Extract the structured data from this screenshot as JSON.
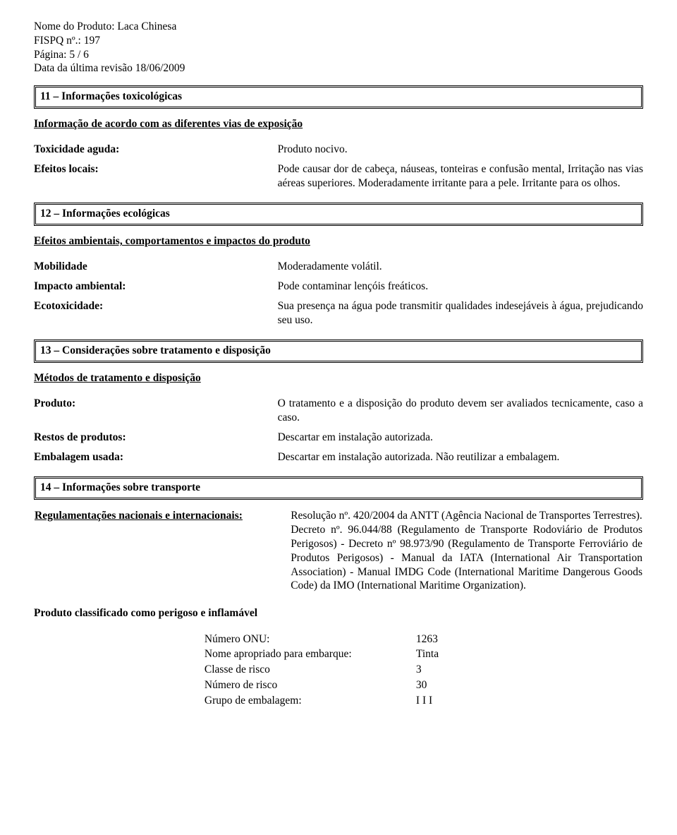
{
  "header": {
    "product_name_label": "Nome do Produto:",
    "product_name_value": "Laca Chinesa",
    "fispq_label": "FISPQ nº.:",
    "fispq_value": "197",
    "page_label": "Página:",
    "page_value": "5 / 6",
    "revision_label": "Data da última revisão",
    "revision_value": "18/06/2009"
  },
  "sec11": {
    "title": "11 – Informações toxicológicas",
    "subheading": "Informação de acordo com  as diferentes vias de exposição",
    "row1_label": "Toxicidade aguda:",
    "row1_value": "Produto nocivo.",
    "row2_label": "Efeitos locais:",
    "row2_value": "Pode causar dor de cabeça, náuseas, tonteiras e confusão mental, Irritação nas vias aéreas superiores. Moderadamente irritante para a pele. Irritante para os olhos."
  },
  "sec12": {
    "title": "12 – Informações ecológicas",
    "subheading": "Efeitos ambientais, comportamentos e impactos do produto",
    "row1_label": "Mobilidade",
    "row1_value": "Moderadamente volátil.",
    "row2_label": "Impacto ambiental:",
    "row2_value": "Pode contaminar lençóis freáticos.",
    "row3_label": "Ecotoxicidade:",
    "row3_value": "Sua presença na água pode transmitir qualidades indesejáveis à água, prejudicando seu uso."
  },
  "sec13": {
    "title": "13 – Considerações sobre tratamento e disposição",
    "subheading": "Métodos de tratamento e disposição",
    "row1_label": "Produto:",
    "row1_value": "O tratamento e a disposição do produto devem ser avaliados tecnicamente, caso a caso.",
    "row2_label": "Restos de produtos:",
    "row2_value": "Descartar em instalação autorizada.",
    "row3_label": "Embalagem usada:",
    "row3_value": "Descartar em instalação autorizada. Não reutilizar a embalagem."
  },
  "sec14": {
    "title": "14 – Informações sobre transporte",
    "reg_label": "Regulamentações nacionais e internacionais:",
    "reg_value": "Resolução nº. 420/2004 da ANTT (Agência Nacional de Transportes Terrestres).\nDecreto nº. 96.044/88 (Regulamento de Transporte Rodoviário de Produtos Perigosos) - Decreto nº 98.973/90 (Regulamento de Transporte Ferroviário de Produtos Perigosos) - Manual da IATA (International Air Transportation Association) - Manual IMDG Code (International Maritime Dangerous Goods Code) da IMO (International Maritime Organization).",
    "class_line": "Produto classificado como perigoso e inflamável",
    "tv": [
      {
        "label": "Número ONU:",
        "value": "1263"
      },
      {
        "label": "Nome apropriado para embarque:",
        "value": "Tinta"
      },
      {
        "label": "Classe de risco",
        "value": "3"
      },
      {
        "label": "Número de risco",
        "value": "30"
      },
      {
        "label": "Grupo de embalagem:",
        "value": "I I I"
      }
    ]
  }
}
